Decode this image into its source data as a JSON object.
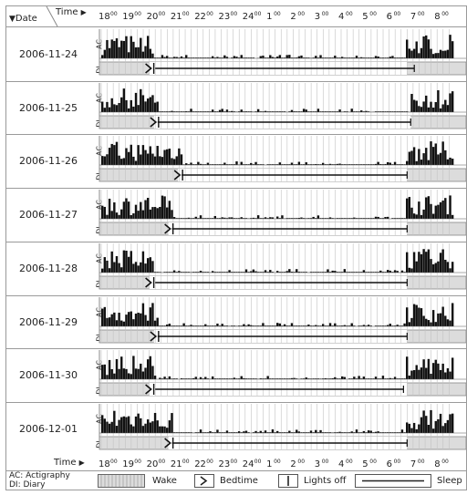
{
  "header": {
    "date_label": "Date",
    "time_label": "Time",
    "time_ticks": [
      "18",
      "19",
      "20",
      "21",
      "22",
      "23",
      "24",
      "1",
      "2",
      "3",
      "4",
      "5",
      "6",
      "7",
      "8"
    ]
  },
  "row_labels": {
    "ac": "AC",
    "di": "DI"
  },
  "rows": [
    {
      "date": "2006-11-24",
      "bedtime": 20.0,
      "lights_off": 20.0,
      "sleep_start": 20.25,
      "sleep_end": 31.05,
      "wake_start": 30.75
    },
    {
      "date": "2006-11-25",
      "bedtime": 20.2,
      "lights_off": 20.2,
      "sleep_start": 20.35,
      "sleep_end": 30.9,
      "wake_start": 30.9
    },
    {
      "date": "2006-11-26",
      "bedtime": 21.2,
      "lights_off": 21.2,
      "sleep_start": 21.35,
      "sleep_end": 30.75,
      "wake_start": 30.75
    },
    {
      "date": "2006-11-27",
      "bedtime": 20.8,
      "lights_off": 20.8,
      "sleep_start": 20.95,
      "sleep_end": 30.75,
      "wake_start": 30.75
    },
    {
      "date": "2006-11-28",
      "bedtime": 20.0,
      "lights_off": 20.0,
      "sleep_start": 20.25,
      "sleep_end": 30.75,
      "wake_start": 30.75
    },
    {
      "date": "2006-11-29",
      "bedtime": 20.2,
      "lights_off": 20.2,
      "sleep_start": 20.35,
      "sleep_end": 30.75,
      "wake_start": 30.75
    },
    {
      "date": "2006-11-30",
      "bedtime": 20.0,
      "lights_off": 20.0,
      "sleep_start": 20.25,
      "sleep_end": 30.6,
      "wake_start": 30.75
    },
    {
      "date": "2006-12-01",
      "bedtime": 20.8,
      "lights_off": 20.8,
      "sleep_start": 20.95,
      "sleep_end": 30.75,
      "wake_start": 30.75
    }
  ],
  "legend": {
    "ac_text": "AC: Actigraphy",
    "di_text": "DI: Diary",
    "wake": "Wake",
    "bedtime": "Bedtime",
    "lights_off": "Lights off",
    "sleep": "Sleep"
  }
}
